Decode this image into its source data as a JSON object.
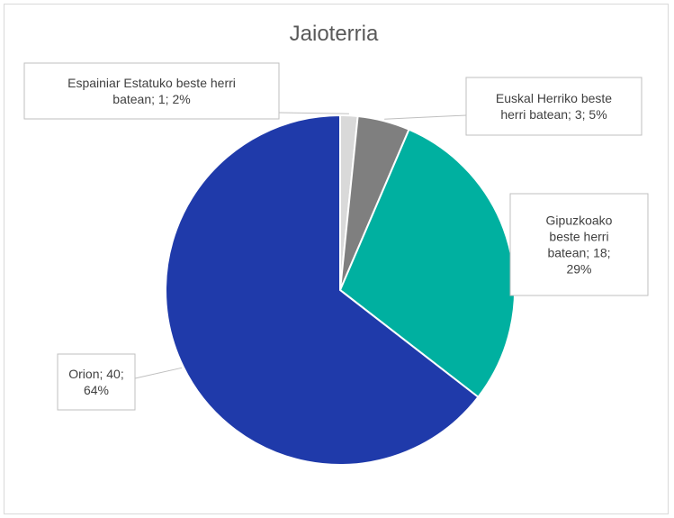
{
  "chart_data": {
    "type": "pie",
    "title": "Jaioterria",
    "slices": [
      {
        "lines": [
          "Espainiar Estatuko beste herri",
          "batean; 1; 2%"
        ],
        "value": 1,
        "percent": 2,
        "color": "#d9d9d9"
      },
      {
        "lines": [
          "Euskal Herriko beste",
          "herri batean; 3; 5%"
        ],
        "value": 3,
        "percent": 5,
        "color": "#7f7f7f"
      },
      {
        "lines": [
          "Gipuzkoako",
          "beste herri",
          "batean; 18;",
          "29%"
        ],
        "value": 18,
        "percent": 29,
        "color": "#00b0a0"
      },
      {
        "lines": [
          "Orion; 40;",
          "64%"
        ],
        "value": 40,
        "percent": 64,
        "color": "#1f3aaa"
      }
    ],
    "legend": "none"
  }
}
